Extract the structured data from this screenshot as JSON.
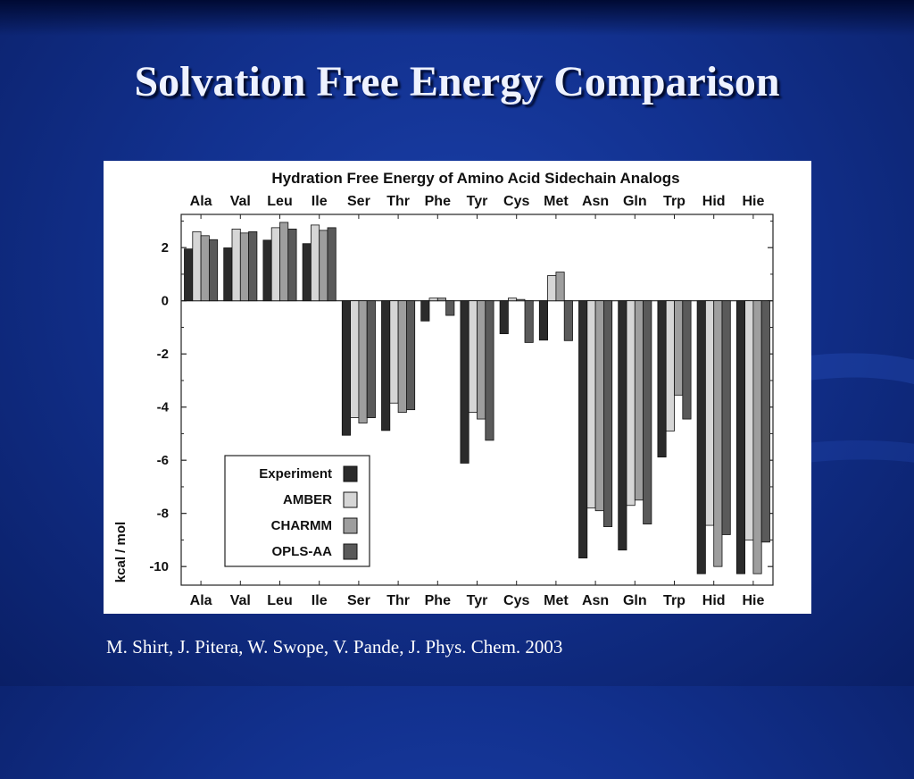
{
  "slide": {
    "title": "Solvation Free Energy Comparison",
    "citation": "M. Shirt, J. Pitera, W. Swope, V. Pande, J. Phys. Chem. 2003"
  },
  "chart_data": {
    "type": "bar",
    "title": "Hydration Free Energy of Amino Acid Sidechain Analogs",
    "xlabel": "",
    "ylabel": "kcal / mol",
    "ylim": [
      -10.7,
      3.25
    ],
    "yticks": [
      2,
      0,
      -2,
      -4,
      -6,
      -8,
      -10
    ],
    "ytick_labels": [
      "2",
      "0",
      "-2",
      "-4",
      "-6",
      "-8",
      "-10"
    ],
    "grid": false,
    "legend_position": "lower-left",
    "categories": [
      "Ala",
      "Val",
      "Leu",
      "Ile",
      "Ser",
      "Thr",
      "Phe",
      "Tyr",
      "Cys",
      "Met",
      "Asn",
      "Gln",
      "Trp",
      "Hid",
      "Hie"
    ],
    "series": [
      {
        "name": "Experiment",
        "color": "#2b2b2b",
        "values": [
          1.95,
          1.99,
          2.28,
          2.15,
          -5.06,
          -4.88,
          -0.76,
          -6.11,
          -1.24,
          -1.48,
          -9.68,
          -9.38,
          -5.88,
          -10.27,
          -10.27
        ]
      },
      {
        "name": "AMBER",
        "color": "#d6d6d6",
        "values": [
          2.6,
          2.7,
          2.75,
          2.85,
          -4.4,
          -3.85,
          0.1,
          -4.2,
          0.1,
          0.95,
          -7.8,
          -7.7,
          -4.9,
          -8.45,
          -9.0
        ]
      },
      {
        "name": "CHARMM",
        "color": "#9e9e9e",
        "values": [
          2.45,
          2.55,
          2.95,
          2.65,
          -4.6,
          -4.2,
          0.1,
          -4.45,
          0.05,
          1.08,
          -7.9,
          -7.5,
          -3.55,
          -10.0,
          -10.27
        ]
      },
      {
        "name": "OPLS-AA",
        "color": "#5a5a5a",
        "values": [
          2.3,
          2.6,
          2.7,
          2.75,
          -4.4,
          -4.1,
          -0.55,
          -5.25,
          -1.57,
          -1.5,
          -8.5,
          -8.4,
          -4.45,
          -8.8,
          -9.08
        ]
      }
    ]
  }
}
